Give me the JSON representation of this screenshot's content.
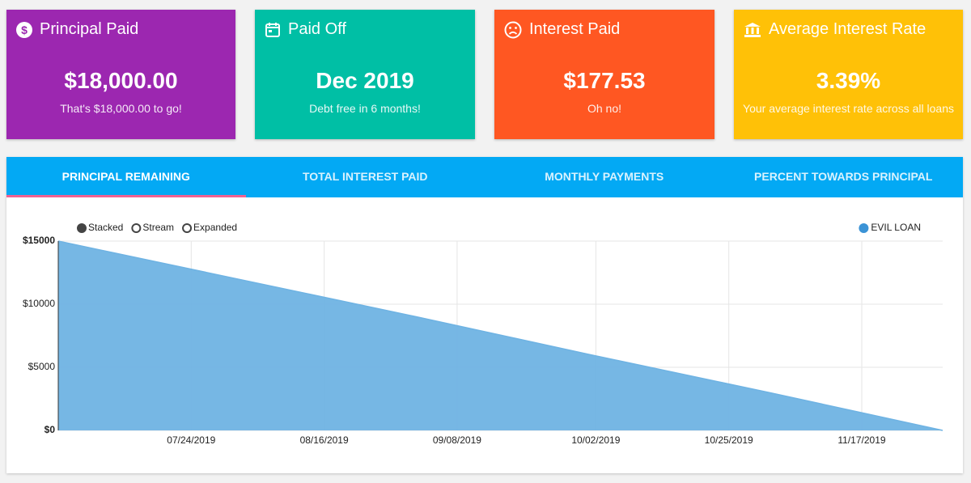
{
  "cards": [
    {
      "title": "Principal Paid",
      "value": "$18,000.00",
      "subtitle": "That's $18,000.00 to go!",
      "color": "#9c27b0"
    },
    {
      "title": "Paid Off",
      "value": "Dec 2019",
      "subtitle": "Debt free in 6 months!",
      "color": "#00bfa5"
    },
    {
      "title": "Interest Paid",
      "value": "$177.53",
      "subtitle": "Oh no!",
      "color": "#ff5722"
    },
    {
      "title": "Average Interest Rate",
      "value": "3.39%",
      "subtitle": "Your average interest rate across all loans",
      "color": "#ffc107"
    }
  ],
  "tabs": {
    "labels": [
      "PRINCIPAL REMAINING",
      "TOTAL INTEREST PAID",
      "MONTHLY PAYMENTS",
      "PERCENT TOWARDS PRINCIPAL"
    ],
    "active": 0
  },
  "chart_data": {
    "type": "area",
    "modes": [
      "Stacked",
      "Stream",
      "Expanded"
    ],
    "active_mode": 0,
    "x": [
      "07/01/2019",
      "08/01/2019",
      "09/01/2019",
      "10/01/2019",
      "11/01/2019",
      "12/01/2019"
    ],
    "series": [
      {
        "name": "EVIL LOAN",
        "color": "#6fb3e3",
        "values": [
          15000,
          12000,
          9000,
          6000,
          3000,
          0
        ]
      }
    ],
    "xlim": [
      "07/01/2019",
      "12/01/2019"
    ],
    "xticks": [
      "07/24/2019",
      "08/16/2019",
      "09/08/2019",
      "10/02/2019",
      "10/25/2019",
      "11/17/2019"
    ],
    "ylim": [
      0,
      15000
    ],
    "yticks": [
      {
        "value": 0,
        "label": "$0"
      },
      {
        "value": 5000,
        "label": "$5000"
      },
      {
        "value": 10000,
        "label": "$10000"
      },
      {
        "value": 15000,
        "label": "$15000"
      }
    ],
    "grid": true,
    "legend": "top-right"
  }
}
